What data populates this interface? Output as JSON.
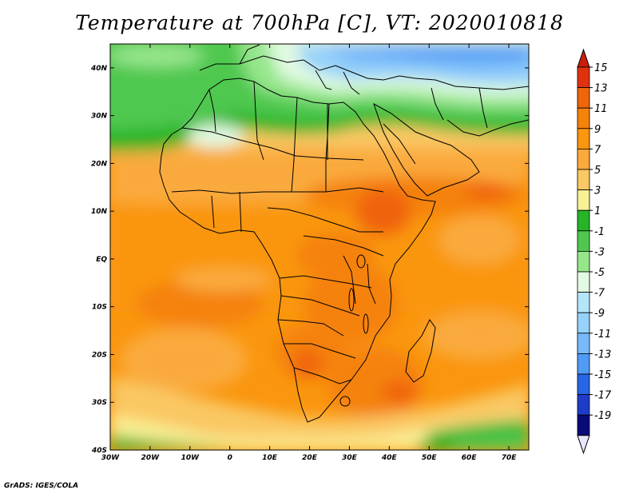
{
  "title": "Temperature at 700hPa [C], VT: 2020010818",
  "credit": "GrADS: IGES/COLA",
  "map": {
    "lon_range": [
      -30,
      75
    ],
    "lat_range": [
      -40,
      45
    ],
    "lon_ticks": [
      {
        "value": -30,
        "label": "30W"
      },
      {
        "value": -20,
        "label": "20W"
      },
      {
        "value": -10,
        "label": "10W"
      },
      {
        "value": 0,
        "label": "0"
      },
      {
        "value": 10,
        "label": "10E"
      },
      {
        "value": 20,
        "label": "20E"
      },
      {
        "value": 30,
        "label": "30E"
      },
      {
        "value": 40,
        "label": "40E"
      },
      {
        "value": 50,
        "label": "50E"
      },
      {
        "value": 60,
        "label": "60E"
      },
      {
        "value": 70,
        "label": "70E"
      }
    ],
    "lat_ticks": [
      {
        "value": 40,
        "label": "40N"
      },
      {
        "value": 30,
        "label": "30N"
      },
      {
        "value": 20,
        "label": "20N"
      },
      {
        "value": 10,
        "label": "10N"
      },
      {
        "value": 0,
        "label": "EQ"
      },
      {
        "value": -10,
        "label": "10S"
      },
      {
        "value": -20,
        "label": "20S"
      },
      {
        "value": -30,
        "label": "30S"
      },
      {
        "value": -40,
        "label": "40S"
      }
    ]
  },
  "colorbar": {
    "labels": [
      "15",
      "13",
      "11",
      "9",
      "7",
      "5",
      "3",
      "1",
      "-1",
      "-3",
      "-5",
      "-7",
      "-9",
      "-11",
      "-13",
      "-15",
      "-17",
      "-19"
    ],
    "colors": [
      "#e1320f",
      "#f0640a",
      "#f5820a",
      "#fa960f",
      "#faaa3c",
      "#fac864",
      "#faf096",
      "#28b428",
      "#50c850",
      "#96e68c",
      "#e1fae1",
      "#b4e6fa",
      "#96d2fa",
      "#78b9fa",
      "#509bf5",
      "#2864e6",
      "#1e3cc8",
      "#0a0a78"
    ],
    "top_arrow_color": "#c81e0a",
    "bottom_arrow_color": "#e6e6ff"
  }
}
